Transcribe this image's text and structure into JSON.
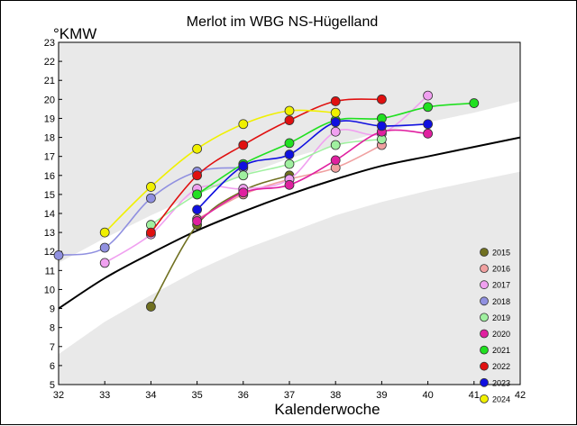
{
  "chart_data": {
    "type": "line",
    "title": "Merlot im WBG NS-Hügelland",
    "xlabel": "Kalenderwoche",
    "ylabel": "°KMW",
    "xlim": [
      32,
      42
    ],
    "ylim": [
      5,
      23
    ],
    "x_ticks": [
      32,
      33,
      34,
      35,
      36,
      37,
      38,
      39,
      40,
      41,
      42
    ],
    "y_ticks": [
      5,
      6,
      7,
      8,
      9,
      10,
      11,
      12,
      13,
      14,
      15,
      16,
      17,
      18,
      19,
      20,
      21,
      22,
      23
    ],
    "legend_position": "bottom-right",
    "grid": false,
    "reference_curve": {
      "color": "#000000",
      "points": [
        [
          32,
          9.0
        ],
        [
          33,
          10.6
        ],
        [
          34,
          11.9
        ],
        [
          35,
          13.1
        ],
        [
          36,
          14.1
        ],
        [
          37,
          15.0
        ],
        [
          38,
          15.8
        ],
        [
          39,
          16.5
        ],
        [
          40,
          17.0
        ],
        [
          41,
          17.5
        ],
        [
          42,
          18.0
        ]
      ]
    },
    "bands": {
      "inner_color": "#ffffff",
      "outer_color": "#e9e9e9",
      "inner_upper": [
        [
          32,
          11.4
        ],
        [
          33,
          12.7
        ],
        [
          34,
          13.9
        ],
        [
          35,
          15.0
        ],
        [
          36,
          16.0
        ],
        [
          37,
          16.9
        ],
        [
          38,
          17.6
        ],
        [
          39,
          18.3
        ],
        [
          40,
          18.8
        ],
        [
          41,
          19.3
        ],
        [
          42,
          19.9
        ]
      ],
      "inner_lower": [
        [
          32,
          6.6
        ],
        [
          33,
          8.3
        ],
        [
          34,
          9.7
        ],
        [
          35,
          11.0
        ],
        [
          36,
          12.1
        ],
        [
          37,
          13.0
        ],
        [
          38,
          13.9
        ],
        [
          39,
          14.6
        ],
        [
          40,
          15.2
        ],
        [
          41,
          15.7
        ],
        [
          42,
          16.2
        ]
      ]
    },
    "series": [
      {
        "name": "2015",
        "color": "#707020",
        "x": [
          34,
          35,
          36,
          37
        ],
        "y": [
          9.1,
          13.4,
          15.2,
          16.0
        ]
      },
      {
        "name": "2016",
        "color": "#f0a0a0",
        "x": [
          35,
          36,
          37,
          38,
          39
        ],
        "y": [
          13.7,
          15.0,
          15.8,
          16.4,
          17.6
        ]
      },
      {
        "name": "2017",
        "color": "#f0a0f0",
        "x": [
          33,
          34,
          35,
          36,
          37,
          38,
          39,
          40
        ],
        "y": [
          11.4,
          12.9,
          15.3,
          15.3,
          15.8,
          18.3,
          18.2,
          20.2
        ]
      },
      {
        "name": "2018",
        "color": "#9090e0",
        "x": [
          32,
          33,
          34,
          35,
          36
        ],
        "y": [
          11.8,
          12.2,
          14.8,
          16.2,
          16.4
        ]
      },
      {
        "name": "2019",
        "color": "#a0f0a0",
        "x": [
          34,
          35,
          36,
          37,
          38,
          39
        ],
        "y": [
          13.4,
          15.0,
          16.0,
          16.6,
          17.6,
          17.9
        ]
      },
      {
        "name": "2020",
        "color": "#e020a0",
        "x": [
          35,
          36,
          37,
          38,
          39,
          40
        ],
        "y": [
          13.6,
          15.1,
          15.5,
          16.8,
          18.3,
          18.2
        ]
      },
      {
        "name": "2021",
        "color": "#20e020",
        "x": [
          35,
          36,
          37,
          38,
          39,
          40,
          41
        ],
        "y": [
          15.0,
          16.6,
          17.7,
          18.9,
          19.0,
          19.6,
          19.8
        ]
      },
      {
        "name": "2022",
        "color": "#e01010",
        "x": [
          34,
          35,
          36,
          37,
          38,
          39
        ],
        "y": [
          13.0,
          16.0,
          17.6,
          18.9,
          19.9,
          20.0
        ]
      },
      {
        "name": "2023",
        "color": "#1010e0",
        "x": [
          35,
          36,
          37,
          38,
          39,
          40
        ],
        "y": [
          14.2,
          16.5,
          17.1,
          18.8,
          18.6,
          18.7
        ]
      },
      {
        "name": "2024",
        "color": "#f0f000",
        "x": [
          33,
          34,
          35,
          36,
          37,
          38
        ],
        "y": [
          13.0,
          15.4,
          17.4,
          18.7,
          19.4,
          19.3
        ]
      }
    ]
  }
}
